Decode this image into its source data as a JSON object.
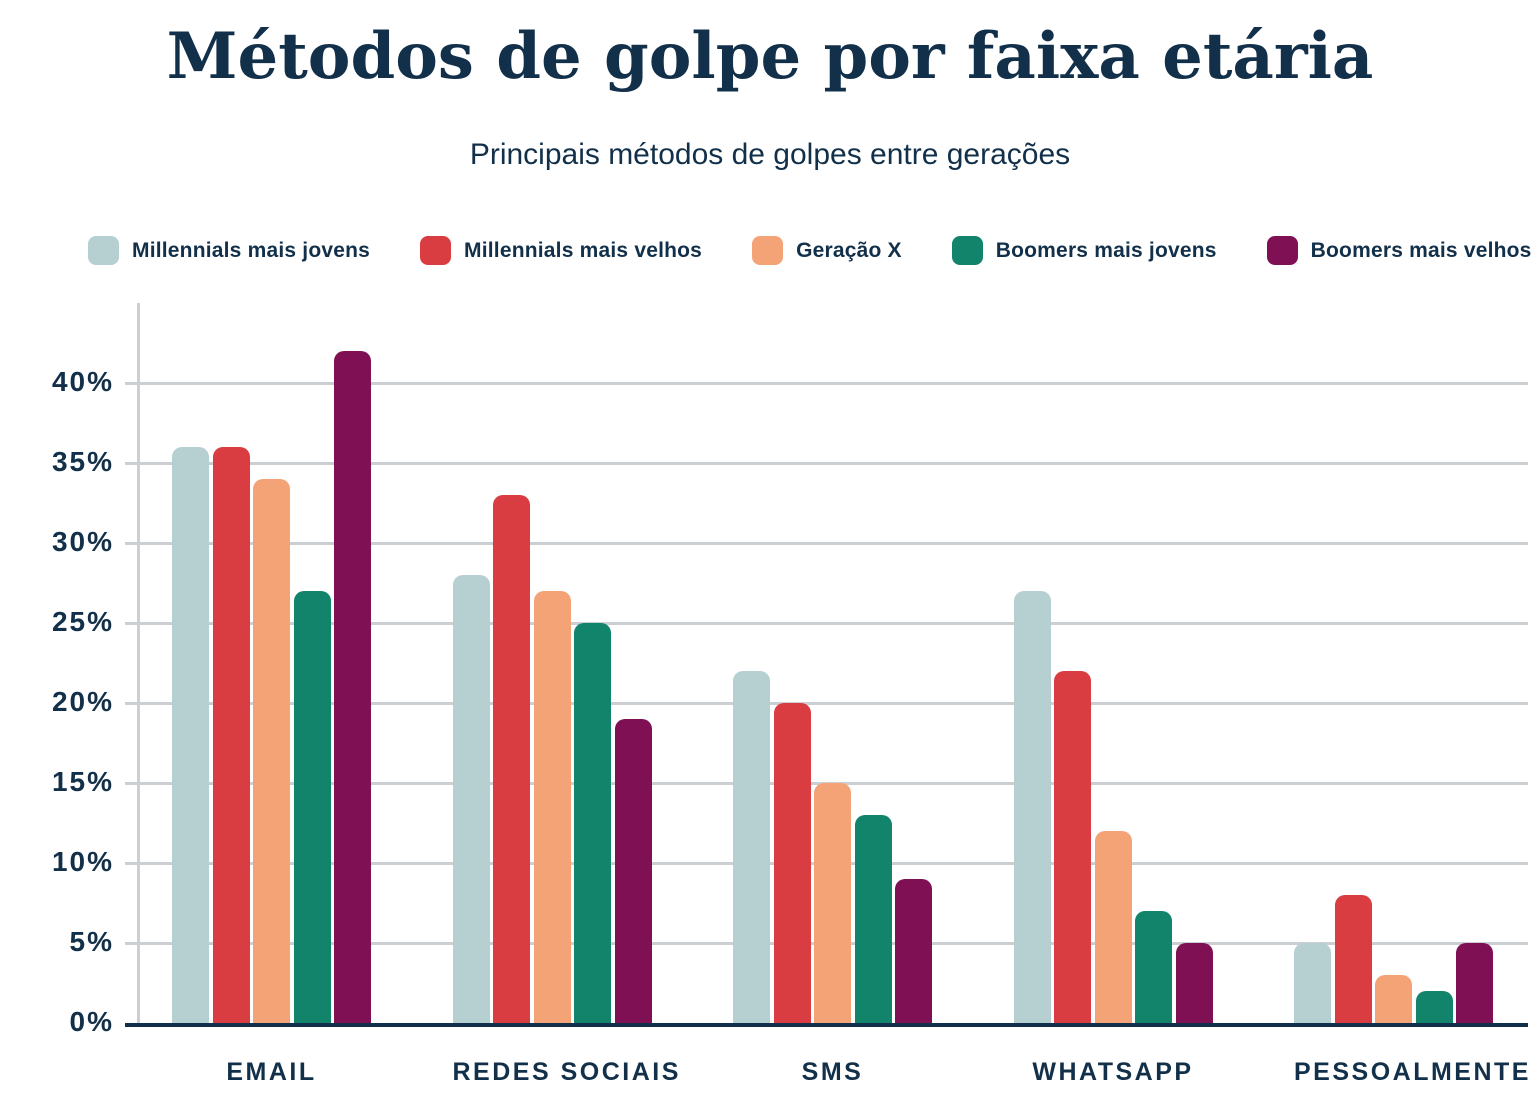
{
  "title": "Métodos de golpe por faixa etária",
  "subtitle": "Principais métodos de golpes entre gerações",
  "colors": {
    "text_navy": "#12304a",
    "gridline_gray": "#cbced3",
    "background": "#ffffff"
  },
  "chart_data": {
    "type": "bar",
    "title": "Métodos de golpe por faixa etária",
    "subtitle": "Principais métodos de golpes entre gerações",
    "categories": [
      "EMAIL",
      "REDES SOCIAIS",
      "SMS",
      "WHATSAPP",
      "PESSOALMENTE"
    ],
    "series": [
      {
        "name": "Millennials mais jovens",
        "color": "#b6cfd0",
        "values": [
          36,
          28,
          22,
          27,
          5
        ]
      },
      {
        "name": "Millennials mais velhos",
        "color": "#d93c41",
        "values": [
          36,
          33,
          20,
          22,
          8
        ]
      },
      {
        "name": "Geração X",
        "color": "#f4a377",
        "values": [
          34,
          27,
          15,
          12,
          3
        ]
      },
      {
        "name": "Boomers mais jovens",
        "color": "#11846b",
        "values": [
          27,
          25,
          13,
          7,
          2
        ]
      },
      {
        "name": "Boomers mais velhos",
        "color": "#7f1053",
        "values": [
          42,
          19,
          9,
          5,
          5
        ]
      }
    ],
    "xlabel": "",
    "ylabel": "",
    "y_ticks": [
      "0%",
      "5%",
      "10%",
      "15%",
      "20%",
      "25%",
      "30%",
      "35%",
      "40%"
    ],
    "ylim": [
      0,
      45
    ],
    "unit": "%",
    "grid": "horizontal",
    "legend_position": "top"
  }
}
